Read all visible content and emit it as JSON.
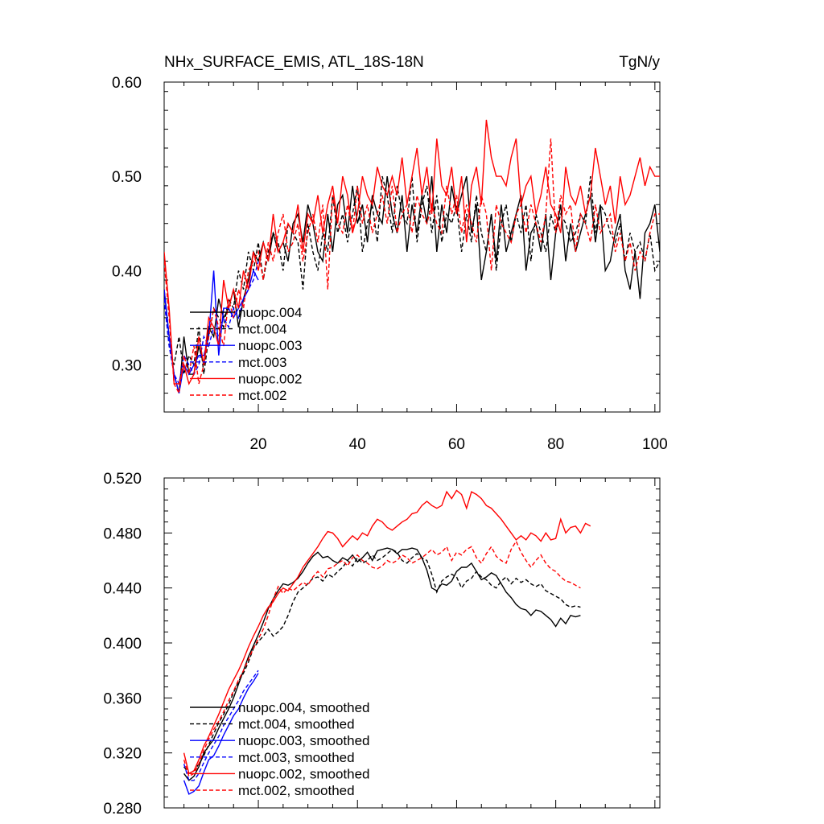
{
  "chart_data": [
    {
      "type": "line",
      "title": "NHx_SURFACE_EMIS, ATL_18S-18N",
      "units": "TgN/y",
      "xlim": [
        1,
        101
      ],
      "ylim": [
        0.25,
        0.6
      ],
      "x_ticks": [
        "20",
        "40",
        "60",
        "80",
        "100"
      ],
      "y_ticks": [
        "0.60",
        "0.50",
        "0.40",
        "0.30"
      ],
      "legend": "lower-left",
      "series": [
        {
          "name": "nuopc.004",
          "color": "#000000",
          "dash": "solid",
          "x_start": 1,
          "values": [
            0.38,
            0.33,
            0.29,
            0.27,
            0.33,
            0.29,
            0.29,
            0.32,
            0.3,
            0.34,
            0.33,
            0.37,
            0.35,
            0.36,
            0.38,
            0.34,
            0.37,
            0.39,
            0.42,
            0.41,
            0.43,
            0.41,
            0.44,
            0.42,
            0.43,
            0.41,
            0.45,
            0.46,
            0.43,
            0.47,
            0.45,
            0.42,
            0.41,
            0.46,
            0.42,
            0.47,
            0.48,
            0.44,
            0.49,
            0.45,
            0.47,
            0.43,
            0.48,
            0.46,
            0.45,
            0.5,
            0.46,
            0.44,
            0.48,
            0.42,
            0.47,
            0.44,
            0.48,
            0.45,
            0.5,
            0.42,
            0.47,
            0.44,
            0.49,
            0.46,
            0.48,
            0.5,
            0.44,
            0.47,
            0.39,
            0.42,
            0.46,
            0.41,
            0.47,
            0.42,
            0.44,
            0.46,
            0.48,
            0.4,
            0.44,
            0.45,
            0.42,
            0.46,
            0.39,
            0.44,
            0.47,
            0.41,
            0.45,
            0.42,
            0.44,
            0.46,
            0.48,
            0.43,
            0.47,
            0.4,
            0.41,
            0.44,
            0.46,
            0.4,
            0.38,
            0.42,
            0.37,
            0.44,
            0.45,
            0.47,
            0.42
          ]
        },
        {
          "name": "mct.004",
          "color": "#000000",
          "dash": "dashed",
          "x_start": 1,
          "values": [
            0.37,
            0.32,
            0.3,
            0.33,
            0.29,
            0.31,
            0.3,
            0.34,
            0.29,
            0.33,
            0.36,
            0.35,
            0.34,
            0.37,
            0.36,
            0.4,
            0.38,
            0.42,
            0.4,
            0.43,
            0.39,
            0.42,
            0.44,
            0.43,
            0.4,
            0.45,
            0.44,
            0.43,
            0.38,
            0.45,
            0.42,
            0.4,
            0.44,
            0.42,
            0.48,
            0.44,
            0.46,
            0.43,
            0.46,
            0.49,
            0.42,
            0.45,
            0.47,
            0.43,
            0.5,
            0.48,
            0.44,
            0.49,
            0.46,
            0.45,
            0.5,
            0.43,
            0.47,
            0.49,
            0.44,
            0.48,
            0.43,
            0.46,
            0.45,
            0.47,
            0.42,
            0.46,
            0.43,
            0.48,
            0.44,
            0.42,
            0.46,
            0.4,
            0.45,
            0.47,
            0.43,
            0.46,
            0.44,
            0.47,
            0.41,
            0.46,
            0.44,
            0.42,
            0.46,
            0.44,
            0.46,
            0.45,
            0.43,
            0.44,
            0.46,
            0.45,
            0.5,
            0.44,
            0.47,
            0.46,
            0.44,
            0.43,
            0.45,
            0.41,
            0.44,
            0.42,
            0.43,
            0.41,
            0.44,
            0.4,
            0.41
          ]
        },
        {
          "name": "nuopc.003",
          "color": "#0000ff",
          "dash": "solid",
          "x_start": 1,
          "values": [
            0.38,
            0.33,
            0.29,
            0.27,
            0.3,
            0.29,
            0.3,
            0.31,
            0.31,
            0.33,
            0.4,
            0.31,
            0.36,
            0.36,
            0.35,
            0.36,
            0.37,
            0.38,
            0.4,
            0.39
          ]
        },
        {
          "name": "mct.003",
          "color": "#0000ff",
          "dash": "dashed",
          "x_start": 1,
          "values": [
            0.37,
            0.32,
            0.29,
            0.28,
            0.31,
            0.3,
            0.29,
            0.3,
            0.33,
            0.32,
            0.34,
            0.33,
            0.35,
            0.34,
            0.36,
            0.35,
            0.37,
            0.38,
            0.39,
            0.41
          ]
        },
        {
          "name": "nuopc.002",
          "color": "#ff0000",
          "dash": "solid",
          "x_start": 1,
          "values": [
            0.42,
            0.36,
            0.28,
            0.28,
            0.3,
            0.28,
            0.29,
            0.33,
            0.3,
            0.35,
            0.34,
            0.32,
            0.39,
            0.36,
            0.38,
            0.36,
            0.4,
            0.38,
            0.42,
            0.4,
            0.43,
            0.41,
            0.46,
            0.42,
            0.43,
            0.45,
            0.44,
            0.47,
            0.42,
            0.46,
            0.45,
            0.48,
            0.44,
            0.47,
            0.49,
            0.45,
            0.5,
            0.48,
            0.44,
            0.46,
            0.5,
            0.48,
            0.47,
            0.51,
            0.49,
            0.48,
            0.5,
            0.48,
            0.52,
            0.47,
            0.5,
            0.53,
            0.48,
            0.51,
            0.46,
            0.54,
            0.49,
            0.48,
            0.51,
            0.46,
            0.5,
            0.43,
            0.49,
            0.51,
            0.47,
            0.56,
            0.52,
            0.5,
            0.5,
            0.49,
            0.52,
            0.54,
            0.47,
            0.49,
            0.5,
            0.46,
            0.48,
            0.51,
            0.47,
            0.46,
            0.44,
            0.51,
            0.48,
            0.47,
            0.49,
            0.46,
            0.48,
            0.53,
            0.5,
            0.47,
            0.49,
            0.45,
            0.5,
            0.47,
            0.48,
            0.5,
            0.52,
            0.49,
            0.51,
            0.5,
            0.5
          ]
        },
        {
          "name": "mct.002",
          "color": "#ff0000",
          "dash": "dashed",
          "x_start": 1,
          "values": [
            0.41,
            0.35,
            0.28,
            0.27,
            0.31,
            0.29,
            0.32,
            0.28,
            0.3,
            0.33,
            0.36,
            0.34,
            0.32,
            0.37,
            0.35,
            0.38,
            0.36,
            0.4,
            0.41,
            0.42,
            0.39,
            0.43,
            0.41,
            0.44,
            0.46,
            0.42,
            0.43,
            0.45,
            0.41,
            0.44,
            0.46,
            0.43,
            0.47,
            0.38,
            0.48,
            0.45,
            0.44,
            0.47,
            0.44,
            0.49,
            0.45,
            0.47,
            0.44,
            0.46,
            0.48,
            0.45,
            0.49,
            0.44,
            0.46,
            0.47,
            0.44,
            0.48,
            0.46,
            0.45,
            0.47,
            0.45,
            0.44,
            0.49,
            0.46,
            0.48,
            0.44,
            0.47,
            0.45,
            0.43,
            0.48,
            0.46,
            0.4,
            0.47,
            0.45,
            0.44,
            0.43,
            0.46,
            0.47,
            0.44,
            0.47,
            0.45,
            0.43,
            0.46,
            0.54,
            0.44,
            0.48,
            0.46,
            0.47,
            0.42,
            0.46,
            0.45,
            0.43,
            0.47,
            0.44,
            0.45,
            0.46,
            0.42,
            0.44,
            0.41,
            0.43,
            0.4,
            0.42,
            0.41,
            0.44,
            0.46,
            0.46
          ]
        }
      ]
    },
    {
      "type": "line",
      "title": "",
      "xlim": [
        1,
        101
      ],
      "ylim": [
        0.28,
        0.52
      ],
      "x_ticks": [],
      "y_ticks": [
        "0.520",
        "0.480",
        "0.440",
        "0.400",
        "0.360",
        "0.320",
        "0.280"
      ],
      "legend": "lower-left",
      "series": [
        {
          "name": "nuopc.004, smoothed",
          "color": "#000000",
          "dash": "solid",
          "x_start": 5,
          "values": [
            0.305,
            0.3,
            0.303,
            0.31,
            0.32,
            0.325,
            0.33,
            0.338,
            0.345,
            0.352,
            0.36,
            0.37,
            0.38,
            0.39,
            0.398,
            0.406,
            0.415,
            0.425,
            0.432,
            0.438,
            0.443,
            0.442,
            0.444,
            0.447,
            0.452,
            0.458,
            0.463,
            0.466,
            0.462,
            0.463,
            0.46,
            0.458,
            0.462,
            0.46,
            0.464,
            0.459,
            0.462,
            0.466,
            0.46,
            0.467,
            0.468,
            0.469,
            0.468,
            0.465,
            0.468,
            0.468,
            0.469,
            0.468,
            0.462,
            0.453,
            0.44,
            0.438,
            0.443,
            0.442,
            0.445,
            0.452,
            0.455,
            0.455,
            0.458,
            0.452,
            0.446,
            0.448,
            0.451,
            0.449,
            0.443,
            0.437,
            0.433,
            0.428,
            0.425,
            0.424,
            0.42,
            0.424,
            0.423,
            0.42,
            0.417,
            0.412,
            0.418,
            0.414,
            0.42,
            0.419,
            0.42
          ]
        },
        {
          "name": "mct.004, smoothed",
          "color": "#000000",
          "dash": "dashed",
          "x_start": 5,
          "values": [
            0.31,
            0.305,
            0.307,
            0.312,
            0.318,
            0.326,
            0.334,
            0.342,
            0.348,
            0.355,
            0.364,
            0.372,
            0.378,
            0.386,
            0.396,
            0.401,
            0.405,
            0.41,
            0.405,
            0.408,
            0.412,
            0.42,
            0.43,
            0.437,
            0.44,
            0.443,
            0.447,
            0.448,
            0.445,
            0.45,
            0.448,
            0.452,
            0.455,
            0.46,
            0.456,
            0.462,
            0.458,
            0.46,
            0.464,
            0.46,
            0.462,
            0.465,
            0.468,
            0.466,
            0.46,
            0.458,
            0.462,
            0.465,
            0.462,
            0.46,
            0.45,
            0.437,
            0.445,
            0.448,
            0.45,
            0.448,
            0.44,
            0.445,
            0.447,
            0.452,
            0.448,
            0.446,
            0.442,
            0.44,
            0.445,
            0.448,
            0.443,
            0.447,
            0.444,
            0.446,
            0.443,
            0.441,
            0.443,
            0.438,
            0.436,
            0.434,
            0.432,
            0.428,
            0.426,
            0.427,
            0.426
          ]
        },
        {
          "name": "nuopc.003, smoothed",
          "color": "#0000ff",
          "dash": "solid",
          "x_start": 5,
          "values": [
            0.3,
            0.29,
            0.292,
            0.296,
            0.306,
            0.315,
            0.318,
            0.325,
            0.333,
            0.34,
            0.347,
            0.352,
            0.36,
            0.367,
            0.372,
            0.378
          ]
        },
        {
          "name": "mct.003, smoothed",
          "color": "#0000ff",
          "dash": "dashed",
          "x_start": 5,
          "values": [
            0.312,
            0.3,
            0.3,
            0.305,
            0.313,
            0.32,
            0.326,
            0.332,
            0.34,
            0.346,
            0.352,
            0.358,
            0.365,
            0.37,
            0.375,
            0.38
          ]
        },
        {
          "name": "nuopc.002, smoothed",
          "color": "#ff0000",
          "dash": "solid",
          "x_start": 5,
          "values": [
            0.32,
            0.305,
            0.307,
            0.315,
            0.325,
            0.332,
            0.34,
            0.348,
            0.357,
            0.366,
            0.373,
            0.38,
            0.388,
            0.397,
            0.405,
            0.412,
            0.42,
            0.426,
            0.43,
            0.436,
            0.44,
            0.438,
            0.443,
            0.448,
            0.455,
            0.46,
            0.465,
            0.47,
            0.476,
            0.481,
            0.48,
            0.476,
            0.47,
            0.474,
            0.478,
            0.475,
            0.48,
            0.478,
            0.485,
            0.49,
            0.488,
            0.484,
            0.482,
            0.485,
            0.488,
            0.49,
            0.494,
            0.495,
            0.5,
            0.503,
            0.5,
            0.498,
            0.5,
            0.51,
            0.505,
            0.511,
            0.508,
            0.498,
            0.51,
            0.508,
            0.505,
            0.5,
            0.498,
            0.494,
            0.49,
            0.485,
            0.48,
            0.475,
            0.478,
            0.475,
            0.48,
            0.478,
            0.474,
            0.48,
            0.475,
            0.476,
            0.49,
            0.48,
            0.484,
            0.485,
            0.48,
            0.487,
            0.485
          ]
        },
        {
          "name": "mct.002, smoothed",
          "color": "#ff0000",
          "dash": "dashed",
          "x_start": 5,
          "values": [
            0.315,
            0.303,
            0.305,
            0.312,
            0.322,
            0.33,
            0.337,
            0.343,
            0.35,
            0.358,
            0.365,
            0.373,
            0.38,
            0.388,
            0.396,
            0.403,
            0.41,
            0.42,
            0.432,
            0.441,
            0.436,
            0.44,
            0.438,
            0.441,
            0.444,
            0.442,
            0.448,
            0.452,
            0.448,
            0.454,
            0.455,
            0.458,
            0.46,
            0.456,
            0.462,
            0.464,
            0.46,
            0.458,
            0.455,
            0.454,
            0.456,
            0.46,
            0.458,
            0.46,
            0.464,
            0.462,
            0.458,
            0.46,
            0.462,
            0.465,
            0.468,
            0.464,
            0.466,
            0.47,
            0.46,
            0.466,
            0.464,
            0.468,
            0.47,
            0.462,
            0.458,
            0.465,
            0.47,
            0.463,
            0.46,
            0.458,
            0.468,
            0.474,
            0.466,
            0.46,
            0.455,
            0.46,
            0.464,
            0.458,
            0.454,
            0.452,
            0.448,
            0.445,
            0.444,
            0.442,
            0.44
          ]
        }
      ]
    }
  ]
}
